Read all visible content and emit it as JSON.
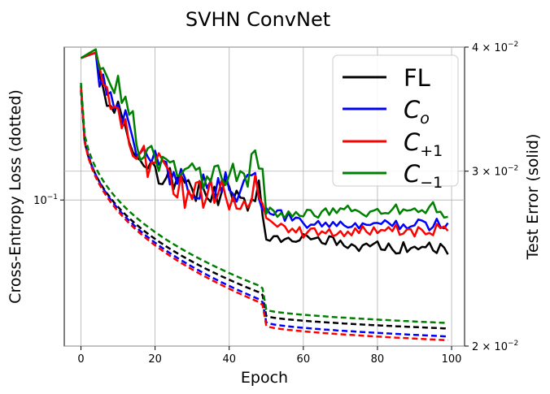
{
  "chart_data": {
    "type": "line",
    "title": "SVHN ConvNet",
    "xlabel": "Epoch",
    "ylabel_left": "Cross-Entropy Loss (dotted)",
    "ylabel_right": "Test Error (solid)",
    "xlim": [
      -4.5,
      103.5
    ],
    "xticks": [
      0,
      20,
      40,
      60,
      80,
      100
    ],
    "left_axis": {
      "scale": "log",
      "lim": [
        0.035,
        0.3
      ],
      "tick_value": 0.1,
      "tick_label": "10^{-1}"
    },
    "right_axis": {
      "scale": "log",
      "lim": [
        0.02,
        0.04
      ],
      "ticks": [
        {
          "value": 0.02,
          "label": "2 × 10^{-2}"
        },
        {
          "value": 0.03,
          "label": "3 × 10^{-2}"
        },
        {
          "value": 0.04,
          "label": "4 × 10^{-2}"
        }
      ]
    },
    "grid": true,
    "legend": {
      "position": "top-right",
      "entries": [
        "FL",
        "C_o",
        "C_{+1}",
        "C_{-1}"
      ]
    },
    "series": [
      {
        "name": "FL",
        "color": "#000000",
        "loss_start": 0.22,
        "loss_end_epoch": 49,
        "loss_end": 0.051,
        "loss_after": 0.0435,
        "loss_final": 0.0397,
        "error_points": [
          [
            0,
            0.039
          ],
          [
            4,
            0.0395
          ],
          [
            5,
            0.037
          ],
          [
            6,
            0.036
          ],
          [
            8,
            0.035
          ],
          [
            10,
            0.0352
          ],
          [
            12,
            0.034
          ],
          [
            14,
            0.032
          ],
          [
            16,
            0.0305
          ],
          [
            18,
            0.031
          ],
          [
            20,
            0.03
          ],
          [
            24,
            0.0295
          ],
          [
            28,
            0.0285
          ],
          [
            32,
            0.0288
          ],
          [
            36,
            0.0286
          ],
          [
            40,
            0.0287
          ],
          [
            44,
            0.0283
          ],
          [
            48,
            0.0289
          ],
          [
            50,
            0.0258
          ],
          [
            55,
            0.0255
          ],
          [
            60,
            0.0258
          ],
          [
            65,
            0.0256
          ],
          [
            70,
            0.0254
          ],
          [
            75,
            0.0252
          ],
          [
            80,
            0.0253
          ],
          [
            85,
            0.0251
          ],
          [
            90,
            0.0252
          ],
          [
            95,
            0.0252
          ],
          [
            99,
            0.0249
          ]
        ]
      },
      {
        "name": "C_o",
        "color": "#0000ff",
        "loss_start": 0.228,
        "loss_end_epoch": 49,
        "loss_end": 0.0485,
        "loss_after": 0.0415,
        "loss_final": 0.0375,
        "error_points": [
          [
            0,
            0.039
          ],
          [
            4,
            0.0395
          ],
          [
            5,
            0.037
          ],
          [
            8,
            0.0355
          ],
          [
            10,
            0.034
          ],
          [
            12,
            0.0335
          ],
          [
            14,
            0.0325
          ],
          [
            16,
            0.0315
          ],
          [
            18,
            0.031
          ],
          [
            20,
            0.0305
          ],
          [
            24,
            0.03
          ],
          [
            28,
            0.029
          ],
          [
            32,
            0.029
          ],
          [
            36,
            0.0288
          ],
          [
            40,
            0.029
          ],
          [
            44,
            0.0287
          ],
          [
            48,
            0.029
          ],
          [
            50,
            0.0275
          ],
          [
            55,
            0.027
          ],
          [
            60,
            0.0266
          ],
          [
            65,
            0.0266
          ],
          [
            70,
            0.0264
          ],
          [
            75,
            0.0265
          ],
          [
            80,
            0.0265
          ],
          [
            85,
            0.0264
          ],
          [
            90,
            0.0265
          ],
          [
            95,
            0.0265
          ],
          [
            99,
            0.0266
          ]
        ]
      },
      {
        "name": "C_{+1}",
        "color": "#ff0000",
        "loss_start": 0.225,
        "loss_end_epoch": 49,
        "loss_end": 0.0475,
        "loss_after": 0.0405,
        "loss_final": 0.0365,
        "error_points": [
          [
            0,
            0.039
          ],
          [
            4,
            0.0395
          ],
          [
            5,
            0.038
          ],
          [
            8,
            0.0355
          ],
          [
            10,
            0.035
          ],
          [
            12,
            0.0333
          ],
          [
            14,
            0.032
          ],
          [
            16,
            0.031
          ],
          [
            18,
            0.0305
          ],
          [
            20,
            0.0305
          ],
          [
            24,
            0.0292
          ],
          [
            28,
            0.0286
          ],
          [
            32,
            0.0284
          ],
          [
            36,
            0.0285
          ],
          [
            40,
            0.0283
          ],
          [
            44,
            0.0286
          ],
          [
            48,
            0.0287
          ],
          [
            50,
            0.0268
          ],
          [
            55,
            0.0262
          ],
          [
            60,
            0.026
          ],
          [
            65,
            0.0261
          ],
          [
            70,
            0.026
          ],
          [
            75,
            0.0261
          ],
          [
            80,
            0.0262
          ],
          [
            85,
            0.0262
          ],
          [
            90,
            0.0261
          ],
          [
            95,
            0.0262
          ],
          [
            99,
            0.0262
          ]
        ]
      },
      {
        "name": "C_{-1}",
        "color": "#008000",
        "loss_start": 0.232,
        "loss_end_epoch": 49,
        "loss_end": 0.0535,
        "loss_after": 0.0455,
        "loss_final": 0.0413,
        "error_points": [
          [
            0,
            0.039
          ],
          [
            4,
            0.0398
          ],
          [
            5,
            0.039
          ],
          [
            8,
            0.0375
          ],
          [
            10,
            0.0365
          ],
          [
            12,
            0.035
          ],
          [
            14,
            0.0335
          ],
          [
            16,
            0.0315
          ],
          [
            18,
            0.0315
          ],
          [
            20,
            0.0308
          ],
          [
            24,
            0.03
          ],
          [
            28,
            0.0298
          ],
          [
            32,
            0.0296
          ],
          [
            36,
            0.0297
          ],
          [
            40,
            0.0296
          ],
          [
            44,
            0.0296
          ],
          [
            48,
            0.031
          ],
          [
            50,
            0.0275
          ],
          [
            55,
            0.0272
          ],
          [
            60,
            0.0271
          ],
          [
            65,
            0.0272
          ],
          [
            70,
            0.0274
          ],
          [
            75,
            0.0273
          ],
          [
            80,
            0.0273
          ],
          [
            85,
            0.0275
          ],
          [
            90,
            0.0274
          ],
          [
            95,
            0.0276
          ],
          [
            99,
            0.0268
          ]
        ]
      }
    ]
  }
}
